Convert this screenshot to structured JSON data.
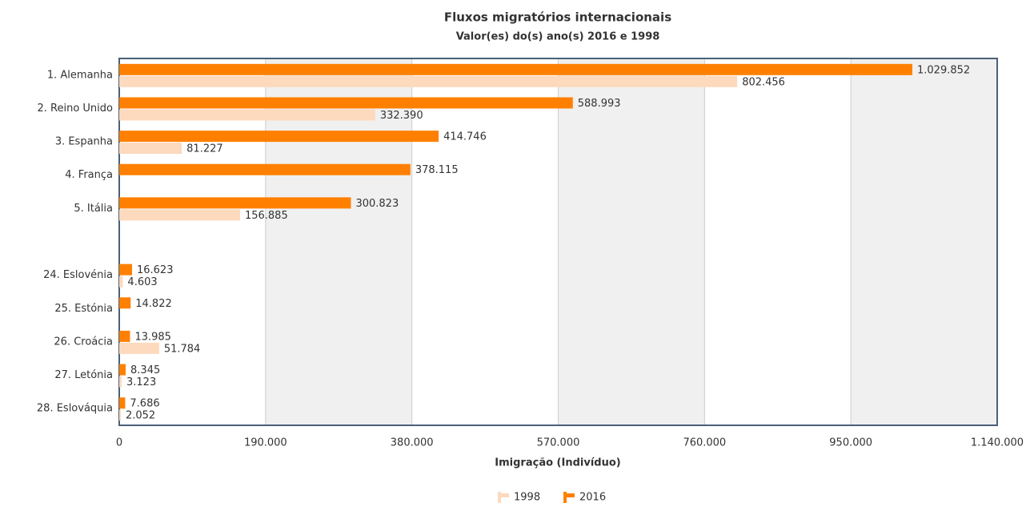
{
  "chart_data": {
    "type": "hbar",
    "title": "Fluxos migratórios internacionais",
    "subtitle": "Valor(es) do(s) ano(s) 2016 e 1998",
    "x_label": "Imigração (Indivíduo)",
    "categories": [
      "1. Alemanha",
      "2. Reino Unido",
      "3. Espanha",
      "4. França",
      "5. Itália",
      null,
      "24. Eslovénia",
      "25. Estónia",
      "26. Croácia",
      "27. Letónia",
      "28. Eslováquia"
    ],
    "series": [
      {
        "name": "1998",
        "color": "#fdd9bd",
        "values": [
          802456,
          332390,
          81227,
          null,
          156885,
          null,
          4603,
          null,
          51784,
          3123,
          2052
        ],
        "value_labels": [
          "802.456",
          "332.390",
          "81.227",
          null,
          "156.885",
          null,
          "4.603",
          null,
          "51.784",
          "3.123",
          "2.052"
        ]
      },
      {
        "name": "2016",
        "color": "#ff8000",
        "values": [
          1029852,
          588993,
          414746,
          378115,
          300823,
          null,
          16623,
          14822,
          13985,
          8345,
          7686
        ],
        "value_labels": [
          "1.029.852",
          "588.993",
          "414.746",
          "378.115",
          "300.823",
          null,
          "16.623",
          "14.822",
          "13.985",
          "8.345",
          "7.686"
        ]
      }
    ],
    "xlim": [
      0,
      1140000
    ],
    "xticks": [
      0,
      {
        "value": 190000,
        "label": "190.000"
      },
      {
        "value": 380000,
        "label": "380.000"
      },
      {
        "value": 570000,
        "label": "570.000"
      },
      {
        "value": 760000,
        "label": "760.000"
      },
      {
        "value": 950000,
        "label": "950.000"
      },
      {
        "value": 1140000,
        "label": "1.140.000"
      }
    ],
    "grid": true,
    "legend": "bottom"
  }
}
